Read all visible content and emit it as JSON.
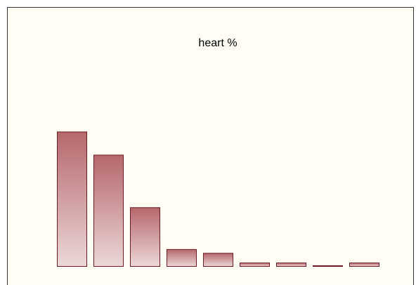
{
  "chart_data": {
    "type": "bar",
    "title": "heart %",
    "categories": [
      null,
      null,
      null,
      null,
      null,
      null,
      null,
      null,
      null
    ],
    "values": [
      38.9,
      32.2,
      17.0,
      4.9,
      3.8,
      1.0,
      1.0,
      0.2,
      1.0
    ],
    "color": "#b5676b",
    "ylim": [
      0,
      40
    ]
  }
}
